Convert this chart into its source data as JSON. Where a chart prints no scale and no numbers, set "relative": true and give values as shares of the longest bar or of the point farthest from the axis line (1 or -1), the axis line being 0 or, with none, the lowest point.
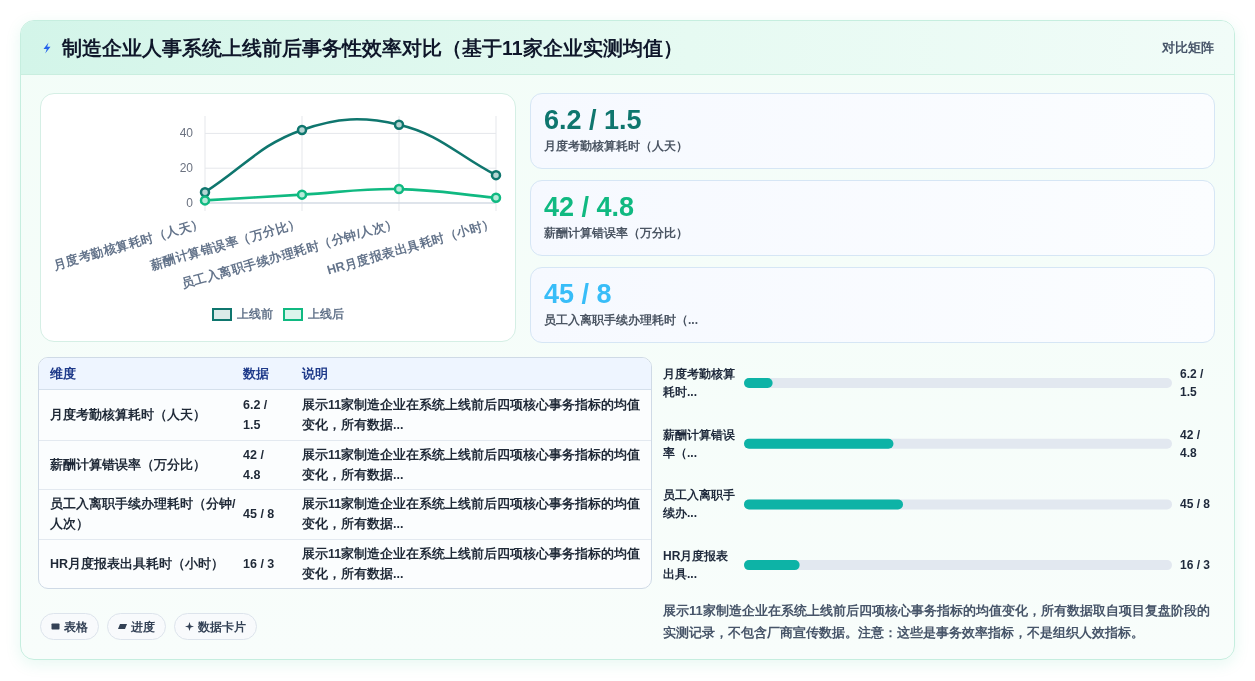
{
  "chart_data": [
    {
      "type": "other",
      "title": "制造企业人事系统上线前后事务性效率对比（基于11家企业实测均值）",
      "annotations": [
        "对比矩阵"
      ]
    },
    {
      "type": "line",
      "categories": [
        "月度考勤核算耗时（人天）",
        "薪酬计算错误率（万分比）",
        "员工入离职手续办理耗时（分钟/人次）",
        "HR月度报表出具耗时（小时）"
      ],
      "series": [
        {
          "name": "上线前",
          "color": "#0f766e",
          "values": [
            6.2,
            42,
            45,
            16
          ]
        },
        {
          "name": "上线后",
          "color": "#10b981",
          "values": [
            1.5,
            4.8,
            8,
            3
          ]
        }
      ],
      "ylim": [
        0,
        50
      ],
      "yticks": [
        0,
        20,
        40
      ],
      "grid": true,
      "legend": "bottom",
      "marker": "circle"
    },
    {
      "type": "other",
      "annotations": [
        "6.2 / 1.5",
        "月度考勤核算耗时（人天）",
        "42 / 4.8",
        "薪酬计算错误率（万分比）",
        "45 / 8",
        "员工入离职手续办理耗时（..."
      ],
      "colors": [
        "#0f766e",
        "#10b981",
        "#38bdf8"
      ]
    },
    {
      "type": "other",
      "annotations": [
        "维度",
        "数据",
        "说明",
        "月度考勤核算耗时（人天）",
        "6.2 / 1.5",
        "展示11家制造企业在系统上线前后四项核心事务指标的均值变化，所有数据...",
        "薪酬计算错误率（万分比）",
        "42 / 4.8",
        "展示11家制造企业在系统上线前后四项核心事务指标的均值变化，所有数据...",
        "员工入离职手续办理耗时（分钟/人次）",
        "45 / 8",
        "展示11家制造企业在系统上线前后四项核心事务指标的均值变化，所有数据...",
        "HR月度报表出具耗时（小时）",
        "16 / 3",
        "展示11家制造企业在系统上线前后四项核心事务指标的均值变化，所有数据..."
      ]
    },
    {
      "type": "bar",
      "orientation": "horizontal",
      "relative": true,
      "categories": [
        "月度考勤核算耗时...",
        "薪酬计算错误率（...",
        "员工入离职手续办...",
        "HR月度报表出具..."
      ],
      "values": [
        0.18,
        0.94,
        1,
        0.35
      ],
      "color": "#0db3a6",
      "annotations": [
        "6.2 / 1.5",
        "42 / 4.8",
        "45 / 8",
        "16 / 3",
        "展示11家制造企业在系统上线前后四项核心事务指标的均值变化，所有数据取自项目复盘阶段的实测记录，不包含厂商宣传数据。注意：这些是事务效率指标，不是组织人效指标。"
      ]
    },
    {
      "type": "other",
      "annotations": [
        "表格",
        "进度",
        "数据卡片"
      ]
    }
  ]
}
